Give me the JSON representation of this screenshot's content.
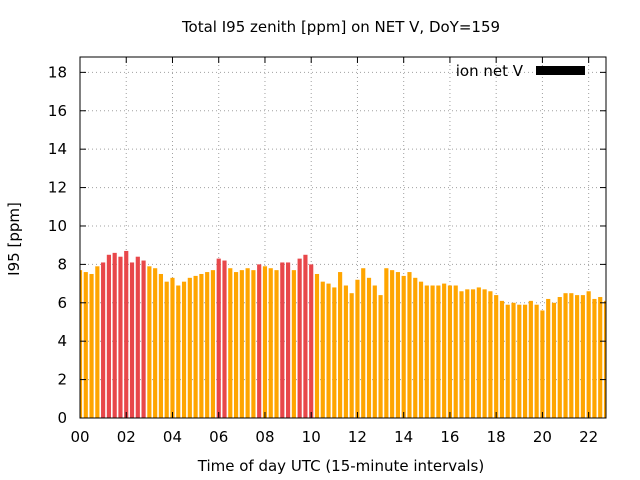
{
  "chart_data": {
    "type": "bar",
    "title": "Total I95 zenith [ppm] on NET V, DoY=159",
    "xlabel": "Time of day UTC (15-minute intervals)",
    "ylabel": "I95 [ppm]",
    "xlim": [
      0,
      22.75
    ],
    "ylim": [
      0,
      18.8
    ],
    "x_ticks": [
      0,
      2,
      4,
      6,
      8,
      10,
      12,
      14,
      16,
      18,
      20,
      22
    ],
    "x_tick_labels": [
      "00",
      "02",
      "04",
      "06",
      "08",
      "10",
      "12",
      "14",
      "16",
      "18",
      "20",
      "22"
    ],
    "y_ticks": [
      0,
      2,
      4,
      6,
      8,
      10,
      12,
      14,
      16,
      18
    ],
    "y_tick_labels": [
      "0",
      "2",
      "4",
      "6",
      "8",
      "10",
      "12",
      "14",
      "16",
      "18"
    ],
    "grid": true,
    "legend": {
      "label": "ion net V",
      "placement": "top-right",
      "color": "#000000"
    },
    "colors": {
      "normal": "#ffa500",
      "high": "#e8474a"
    },
    "high_threshold": 8.0,
    "interval_hours": 0.25,
    "values": [
      7.7,
      7.6,
      7.5,
      7.9,
      8.1,
      8.5,
      8.6,
      8.4,
      8.7,
      8.1,
      8.4,
      8.2,
      7.9,
      7.8,
      7.5,
      7.1,
      7.3,
      6.9,
      7.1,
      7.3,
      7.4,
      7.5,
      7.6,
      7.7,
      8.3,
      8.2,
      7.8,
      7.6,
      7.7,
      7.8,
      7.7,
      8.0,
      7.9,
      7.8,
      7.7,
      8.1,
      8.1,
      7.7,
      8.3,
      8.5,
      8.0,
      7.5,
      7.1,
      7.0,
      6.8,
      7.6,
      6.9,
      6.5,
      7.2,
      7.8,
      7.3,
      6.9,
      6.4,
      7.8,
      7.7,
      7.6,
      7.4,
      7.6,
      7.3,
      7.1,
      6.9,
      6.9,
      6.9,
      7.0,
      6.9,
      6.9,
      6.6,
      6.7,
      6.7,
      6.8,
      6.7,
      6.6,
      6.4,
      6.1,
      5.9,
      6.0,
      5.9,
      5.9,
      6.1,
      5.9,
      5.6,
      6.2,
      6.0,
      6.3,
      6.5,
      6.5,
      6.4,
      6.4,
      6.6,
      6.2,
      6.3,
      6.1
    ]
  }
}
